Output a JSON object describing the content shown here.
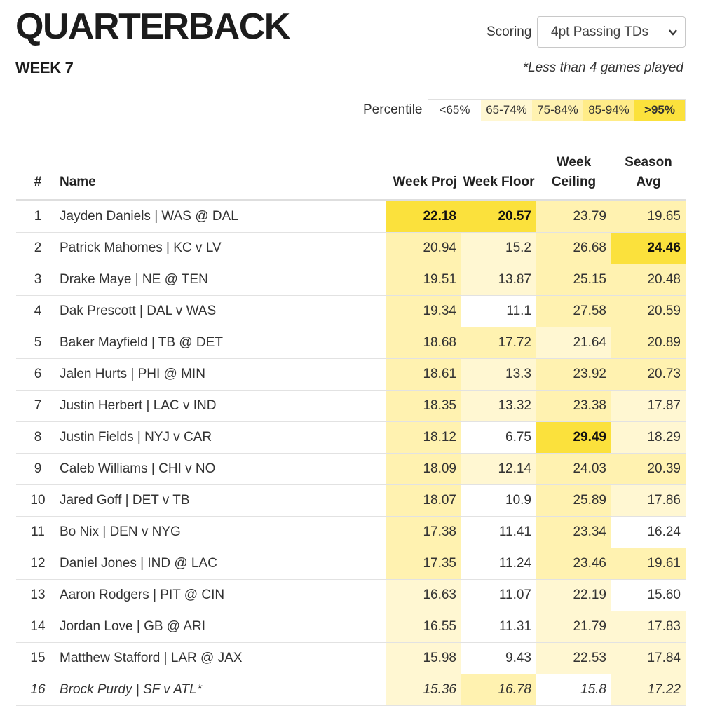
{
  "header": {
    "title": "QUARTERBACK",
    "subtitle": "WEEK 7",
    "scoring_label": "Scoring",
    "scoring_value": "4pt Passing TDs",
    "note": "*Less than 4 games played"
  },
  "legend": {
    "label": "Percentile",
    "items": [
      {
        "label": "<65%",
        "color": "#ffffff"
      },
      {
        "label": "65-74%",
        "color": "#fff7d2"
      },
      {
        "label": "75-84%",
        "color": "#fff2b0"
      },
      {
        "label": "85-94%",
        "color": "#ffec88"
      },
      {
        "label": ">95%",
        "color": "#fbe13c"
      }
    ]
  },
  "table": {
    "columns": [
      "#",
      "Name",
      "Week Proj",
      "Week Floor",
      "Week Ceiling",
      "Season Avg"
    ],
    "rows": [
      {
        "rank": "1",
        "name": "Jayden Daniels | WAS @ DAL",
        "proj": "22.18",
        "floor": "20.57",
        "ceiling": "23.79",
        "avg": "19.65",
        "tiers": [
          4,
          4,
          2,
          2
        ]
      },
      {
        "rank": "2",
        "name": "Patrick Mahomes | KC v LV",
        "proj": "20.94",
        "floor": "15.2",
        "ceiling": "26.68",
        "avg": "24.46",
        "tiers": [
          2,
          1,
          2,
          4
        ]
      },
      {
        "rank": "3",
        "name": "Drake Maye | NE @ TEN",
        "proj": "19.51",
        "floor": "13.87",
        "ceiling": "25.15",
        "avg": "20.48",
        "tiers": [
          2,
          1,
          2,
          2
        ]
      },
      {
        "rank": "4",
        "name": "Dak Prescott | DAL v WAS",
        "proj": "19.34",
        "floor": "11.1",
        "ceiling": "27.58",
        "avg": "20.59",
        "tiers": [
          2,
          0,
          2,
          2
        ]
      },
      {
        "rank": "5",
        "name": "Baker Mayfield | TB @ DET",
        "proj": "18.68",
        "floor": "17.72",
        "ceiling": "21.64",
        "avg": "20.89",
        "tiers": [
          2,
          2,
          1,
          2
        ]
      },
      {
        "rank": "6",
        "name": "Jalen Hurts | PHI @ MIN",
        "proj": "18.61",
        "floor": "13.3",
        "ceiling": "23.92",
        "avg": "20.73",
        "tiers": [
          2,
          1,
          2,
          2
        ]
      },
      {
        "rank": "7",
        "name": "Justin Herbert | LAC v IND",
        "proj": "18.35",
        "floor": "13.32",
        "ceiling": "23.38",
        "avg": "17.87",
        "tiers": [
          2,
          1,
          2,
          1
        ]
      },
      {
        "rank": "8",
        "name": "Justin Fields | NYJ v CAR",
        "proj": "18.12",
        "floor": "6.75",
        "ceiling": "29.49",
        "avg": "18.29",
        "tiers": [
          2,
          0,
          4,
          1
        ]
      },
      {
        "rank": "9",
        "name": "Caleb Williams | CHI v NO",
        "proj": "18.09",
        "floor": "12.14",
        "ceiling": "24.03",
        "avg": "20.39",
        "tiers": [
          2,
          1,
          2,
          2
        ]
      },
      {
        "rank": "10",
        "name": "Jared Goff | DET v TB",
        "proj": "18.07",
        "floor": "10.9",
        "ceiling": "25.89",
        "avg": "17.86",
        "tiers": [
          2,
          0,
          2,
          1
        ]
      },
      {
        "rank": "11",
        "name": "Bo Nix | DEN v NYG",
        "proj": "17.38",
        "floor": "11.41",
        "ceiling": "23.34",
        "avg": "16.24",
        "tiers": [
          2,
          0,
          2,
          0
        ]
      },
      {
        "rank": "12",
        "name": "Daniel Jones | IND @ LAC",
        "proj": "17.35",
        "floor": "11.24",
        "ceiling": "23.46",
        "avg": "19.61",
        "tiers": [
          2,
          0,
          2,
          2
        ]
      },
      {
        "rank": "13",
        "name": "Aaron Rodgers | PIT @ CIN",
        "proj": "16.63",
        "floor": "11.07",
        "ceiling": "22.19",
        "avg": "15.60",
        "tiers": [
          1,
          0,
          1,
          0
        ]
      },
      {
        "rank": "14",
        "name": "Jordan Love | GB @ ARI",
        "proj": "16.55",
        "floor": "11.31",
        "ceiling": "21.79",
        "avg": "17.83",
        "tiers": [
          1,
          0,
          1,
          1
        ]
      },
      {
        "rank": "15",
        "name": "Matthew Stafford | LAR @ JAX",
        "proj": "15.98",
        "floor": "9.43",
        "ceiling": "22.53",
        "avg": "17.84",
        "tiers": [
          1,
          0,
          1,
          1
        ]
      },
      {
        "rank": "16",
        "name": "Brock Purdy | SF v ATL*",
        "proj": "15.36",
        "floor": "16.78",
        "ceiling": "15.8",
        "avg": "17.22",
        "tiers": [
          1,
          2,
          0,
          1
        ],
        "italic": true
      }
    ]
  }
}
